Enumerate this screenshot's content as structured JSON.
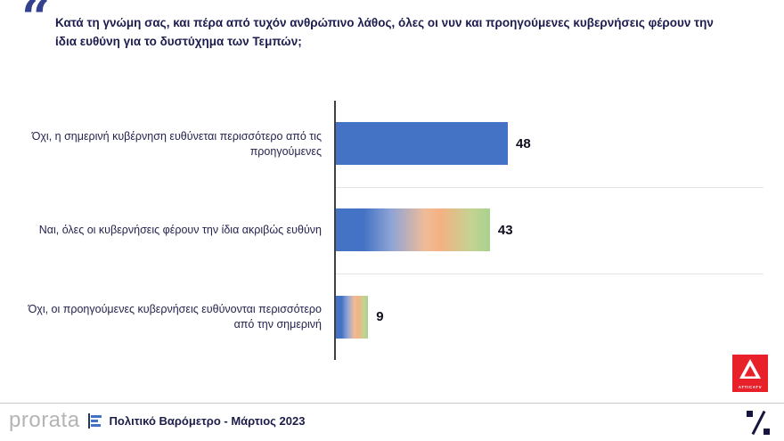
{
  "question": {
    "quote_icon": "“",
    "text": "Κατά τη γνώμη σας, και πέρα από τυχόν ανθρώπινο λάθος, όλες οι νυν και προηγούμενες κυβερνήσεις φέρουν την ίδια ευθύνη για το δυστύχημα των Τεμπών;"
  },
  "chart_data": {
    "type": "bar",
    "orientation": "horizontal",
    "title": "",
    "categories": [
      "Όχι, η σημερινή κυβέρνηση ευθύνεται περισσότερο από τις προηγούμενες",
      "Ναι, όλες οι κυβερνήσεις φέρουν την ίδια ακριβώς ευθύνη",
      "Όχι, οι προηγούμενες κυβερνήσεις ευθύνονται περισσότερο από την σημερινή"
    ],
    "values": [
      48,
      43,
      9
    ],
    "bar_styles": [
      "solid",
      "gradient",
      "gradient"
    ],
    "colors": {
      "blue": "#4472c4",
      "peach": "#f4b183",
      "green": "#a9d18e"
    },
    "value_labels_shown": true,
    "axis_ticks_shown": false,
    "legend": "none",
    "xlim": [
      0,
      60
    ]
  },
  "attica_logo": {
    "label": "ATTICATV"
  },
  "footer": {
    "brand": "prorata",
    "subtitle": "Πολιτικό Βαρόμετρο - Μάρτιος 2023"
  }
}
